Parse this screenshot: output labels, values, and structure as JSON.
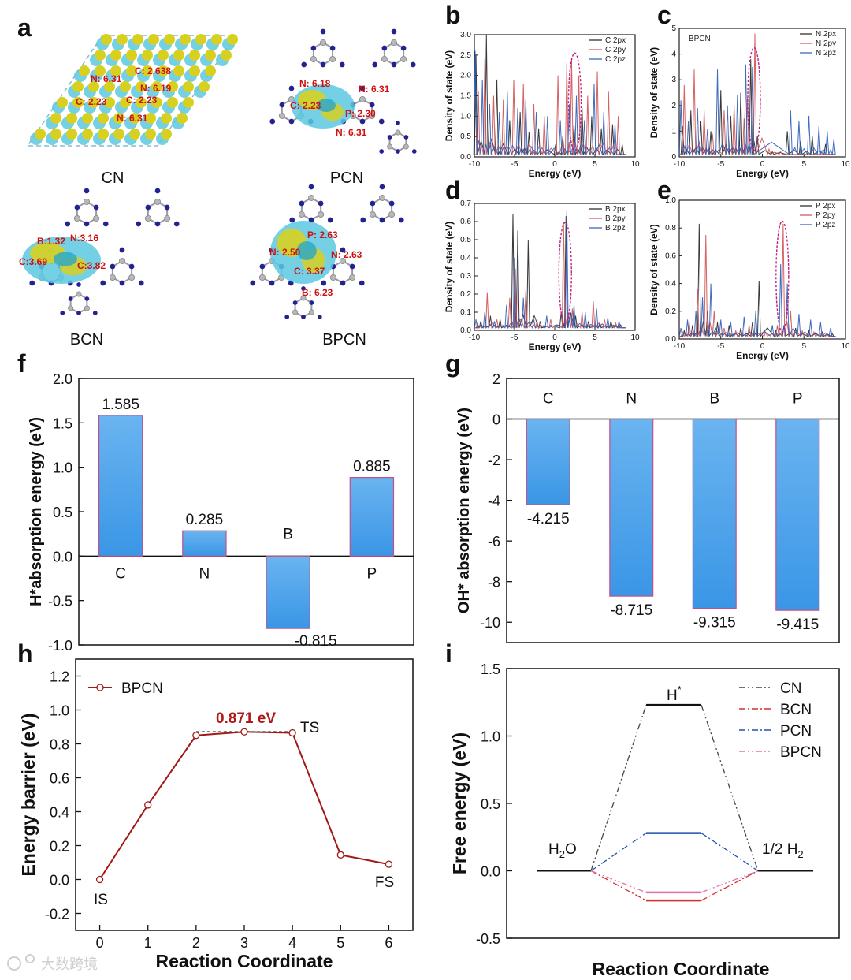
{
  "panel_letters": {
    "a": "a",
    "b": "b",
    "c": "c",
    "d": "d",
    "e": "e",
    "f": "f",
    "g": "g",
    "h": "h",
    "i": "i"
  },
  "panel_a": {
    "structures": [
      {
        "caption": "CN",
        "annotations": [
          "N: 6.31",
          "C: 2.638",
          "N: 6.19",
          "C: 2.23",
          "C: 2.23",
          "N: 6.31"
        ]
      },
      {
        "caption": "PCN",
        "annotations": [
          "N: 6.18",
          "N: 6.31",
          "C: 2.23",
          "P: 2.30",
          "N: 6.31"
        ]
      },
      {
        "caption": "BCN",
        "annotations": [
          "B:1.32",
          "N:3.16",
          "C:3.69",
          "C:3.82"
        ]
      },
      {
        "caption": "BPCN",
        "annotations": [
          "P: 2.63",
          "N: 2.50",
          "N: 2.63",
          "C: 3.37",
          "B: 6.23"
        ]
      }
    ],
    "colors": {
      "carbon": "#b8b8b8",
      "nitrogen": "#23238f",
      "bond": "#9a9aa8",
      "density_yellow": "#d8d020",
      "density_cyan": "#5cc8e0",
      "annotation": "#d01010"
    }
  },
  "watermark": "大数跨境",
  "chart_data": [
    {
      "id": "b",
      "type": "line",
      "title": "",
      "xlabel": "Energy (eV)",
      "ylabel": "Density of state (eV)",
      "xlim": [
        -10,
        10
      ],
      "ylim": [
        0,
        3.0
      ],
      "xticks": [
        "-10",
        "-5",
        "0",
        "5",
        "10"
      ],
      "yticks": [
        "0.0",
        "0.5",
        "1.0",
        "1.5",
        "2.0",
        "2.5",
        "3.0"
      ],
      "legend": [
        "C 2px",
        "C 2py",
        "C 2pz"
      ],
      "colors": [
        "#222222",
        "#d05050",
        "#2a5cb8"
      ],
      "highlight_x": 2.5,
      "peaks": [
        {
          "x": [
            -9.8,
            -8.5,
            -7.2,
            -5.6,
            -4.3,
            -3.2,
            -2.0,
            0.1,
            1.0,
            2.4,
            3.4,
            4.6,
            5.8,
            7.2,
            8.4
          ],
          "y": [
            2.5,
            3.0,
            1.9,
            0.9,
            1.1,
            0.6,
            0.7,
            0.3,
            0.5,
            0.8,
            1.2,
            1.0,
            0.7,
            0.8,
            0.3
          ]
        },
        {
          "x": [
            -9.5,
            -8.7,
            -7.6,
            -6.4,
            -5.1,
            -3.9,
            -2.6,
            -1.3,
            0.4,
            1.5,
            2.1,
            3.0,
            4.1,
            5.3,
            6.7,
            7.9
          ],
          "y": [
            1.6,
            2.4,
            1.5,
            1.4,
            1.9,
            1.8,
            1.3,
            1.0,
            2.0,
            2.3,
            2.4,
            2.0,
            1.5,
            2.1,
            1.6,
            1.0
          ]
        },
        {
          "x": [
            -9.9,
            -9.0,
            -8.1,
            -6.9,
            -5.9,
            -4.6,
            -3.6,
            -2.3,
            -0.9,
            0.7,
            1.8,
            2.7,
            3.7,
            4.9,
            6.1,
            7.5
          ],
          "y": [
            2.6,
            1.9,
            1.3,
            1.1,
            1.6,
            1.2,
            1.4,
            1.1,
            1.0,
            0.9,
            1.3,
            1.5,
            0.9,
            1.8,
            1.1,
            0.8
          ]
        }
      ]
    },
    {
      "id": "c",
      "type": "line",
      "title": "BPCN",
      "xlabel": "Energy (eV)",
      "ylabel": "Density of state (eV)",
      "xlim": [
        -10,
        10
      ],
      "ylim": [
        0,
        5
      ],
      "xticks": [
        "-10",
        "-5",
        "0",
        "5",
        "10"
      ],
      "yticks": [
        "0",
        "1",
        "2",
        "3",
        "4",
        "5"
      ],
      "legend": [
        "N 2px",
        "N 2py",
        "N 2pz"
      ],
      "colors": [
        "#222222",
        "#d05050",
        "#2a5cb8"
      ],
      "highlight_x": -1.0,
      "peaks": [
        {
          "x": [
            -9.6,
            -8.6,
            -7.4,
            -6.2,
            -5.0,
            -3.8,
            -2.6,
            -1.4,
            -0.6,
            1.2,
            3.0,
            4.6,
            6.0,
            7.6
          ],
          "y": [
            1.2,
            1.8,
            1.4,
            1.0,
            2.6,
            1.6,
            2.5,
            3.8,
            0.8,
            0.2,
            1.0,
            0.6,
            0.8,
            0.5
          ]
        },
        {
          "x": [
            -9.4,
            -8.2,
            -7.0,
            -6.0,
            -4.6,
            -3.4,
            -2.2,
            -1.8,
            -0.9,
            0.8,
            2.2
          ],
          "y": [
            2.8,
            3.4,
            1.8,
            0.9,
            1.8,
            2.0,
            1.5,
            2.3,
            4.8,
            0.3,
            0.2
          ]
        },
        {
          "x": [
            -9.8,
            -8.9,
            -7.8,
            -6.6,
            -5.4,
            -4.2,
            -3.0,
            -2.0,
            -1.2,
            3.4,
            4.4,
            5.6,
            6.8,
            7.8,
            8.6
          ],
          "y": [
            2.2,
            1.4,
            1.9,
            1.1,
            3.4,
            2.0,
            2.4,
            3.6,
            3.5,
            1.8,
            1.4,
            1.6,
            1.2,
            1.0,
            0.7
          ]
        }
      ]
    },
    {
      "id": "d",
      "type": "line",
      "title": "",
      "xlabel": "Energy (eV)",
      "ylabel": "Density of state (eV)",
      "xlim": [
        -10,
        10
      ],
      "ylim": [
        0,
        0.7
      ],
      "xticks": [
        "-10",
        "-5",
        "0",
        "5",
        "10"
      ],
      "yticks": [
        "0.0",
        "0.1",
        "0.2",
        "0.3",
        "0.4",
        "0.5",
        "0.6",
        "0.7"
      ],
      "legend": [
        "B 2px",
        "B 2py",
        "B 2pz"
      ],
      "colors": [
        "#222222",
        "#d05050",
        "#2a5cb8"
      ],
      "highlight_x": 1.3,
      "peaks": [
        {
          "x": [
            -9.2,
            -8.0,
            -6.8,
            -5.2,
            -4.6,
            -3.3,
            -1.8,
            0.8,
            1.4,
            2.6,
            4.2,
            5.6,
            7.0,
            8.2
          ],
          "y": [
            0.05,
            0.08,
            0.06,
            0.64,
            0.55,
            0.5,
            0.05,
            0.1,
            0.63,
            0.08,
            0.05,
            0.04,
            0.05,
            0.03
          ]
        },
        {
          "x": [
            -9.6,
            -8.4,
            -7.2,
            -5.6,
            -4.9,
            -3.6,
            -2.2,
            -0.5,
            1.1,
            2.2,
            3.4,
            4.8,
            6.2,
            7.6
          ],
          "y": [
            0.04,
            0.21,
            0.06,
            0.18,
            0.34,
            0.22,
            0.05,
            0.06,
            0.6,
            0.12,
            0.1,
            0.16,
            0.06,
            0.04
          ]
        },
        {
          "x": [
            -9.8,
            -8.7,
            -7.5,
            -6.0,
            -5.0,
            -3.9,
            -2.6,
            -1.0,
            1.5,
            2.4,
            3.8,
            5.2,
            6.6,
            8.0
          ],
          "y": [
            0.06,
            0.1,
            0.05,
            0.14,
            0.4,
            0.18,
            0.06,
            0.08,
            0.66,
            0.14,
            0.1,
            0.12,
            0.07,
            0.05
          ]
        }
      ]
    },
    {
      "id": "e",
      "type": "line",
      "title": "",
      "xlabel": "Energy (eV)",
      "ylabel": "Density of state (eV)",
      "xlim": [
        -10,
        10
      ],
      "ylim": [
        0,
        1.0
      ],
      "xticks": [
        "-10",
        "-5",
        "0",
        "5",
        "10"
      ],
      "yticks": [
        "0.0",
        "0.2",
        "0.4",
        "0.6",
        "0.8",
        "1.0"
      ],
      "legend": [
        "P 2px",
        "P 2py",
        "P 2pz"
      ],
      "colors": [
        "#222222",
        "#d05050",
        "#2a5cb8"
      ],
      "highlight_x": 2.4,
      "peaks": [
        {
          "x": [
            -9.4,
            -8.4,
            -7.6,
            -6.6,
            -5.4,
            -4.0,
            -2.6,
            -1.2,
            -0.4,
            1.6,
            2.6,
            4.0,
            5.6,
            7.2,
            8.4
          ],
          "y": [
            0.06,
            0.1,
            0.83,
            0.2,
            0.12,
            0.1,
            0.08,
            0.12,
            0.42,
            0.06,
            0.1,
            0.08,
            0.06,
            0.05,
            0.04
          ]
        },
        {
          "x": [
            -9.6,
            -8.8,
            -7.8,
            -6.8,
            -5.8,
            -4.6,
            -3.2,
            -1.6,
            0.4,
            1.8,
            2.5,
            3.4,
            4.8,
            6.2,
            7.8
          ],
          "y": [
            0.05,
            0.12,
            0.36,
            0.75,
            0.2,
            0.08,
            0.06,
            0.1,
            0.05,
            0.1,
            0.83,
            0.2,
            0.06,
            0.05,
            0.04
          ]
        },
        {
          "x": [
            -9.8,
            -9.0,
            -8.0,
            -7.2,
            -6.2,
            -5.0,
            -3.8,
            -2.2,
            -0.8,
            1.2,
            2.2,
            3.0,
            4.4,
            5.8,
            7.0,
            8.2
          ],
          "y": [
            0.08,
            0.14,
            0.2,
            0.3,
            0.4,
            0.14,
            0.12,
            0.16,
            0.2,
            0.1,
            0.54,
            0.4,
            0.18,
            0.14,
            0.12,
            0.08
          ]
        }
      ]
    },
    {
      "id": "f",
      "type": "bar",
      "title": "",
      "xlabel": "",
      "ylabel": "H*absorption energy (eV)",
      "categories": [
        "C",
        "N",
        "B",
        "P"
      ],
      "values": [
        1.585,
        0.285,
        -0.815,
        0.885
      ],
      "value_labels": [
        "1.585",
        "0.285",
        "-0.815",
        "0.885"
      ],
      "ylim": [
        -1.0,
        2.0
      ],
      "yticks": [
        "-1.0",
        "-0.5",
        "0.0",
        "0.5",
        "1.0",
        "1.5",
        "2.0"
      ],
      "bar_color": "#3a96e6",
      "bar_edge": "#c0508a"
    },
    {
      "id": "g",
      "type": "bar",
      "title": "",
      "xlabel": "",
      "ylabel": "OH* absorption energy (eV)",
      "categories": [
        "C",
        "N",
        "B",
        "P"
      ],
      "values": [
        -4.215,
        -8.715,
        -9.315,
        -9.415
      ],
      "value_labels": [
        "-4.215",
        "-8.715",
        "-9.315",
        "-9.415"
      ],
      "ylim": [
        -11,
        2
      ],
      "yticks": [
        "-10",
        "-8",
        "-6",
        "-4",
        "-2",
        "0",
        "2"
      ],
      "bar_color": "#3a96e6",
      "bar_edge": "#c0508a"
    },
    {
      "id": "h",
      "type": "line",
      "title": "",
      "xlabel": "Reaction Coordinate",
      "ylabel": "Energy barrier (eV)",
      "x": [
        0,
        1,
        2,
        3,
        4,
        5,
        6
      ],
      "y": [
        0.0,
        0.44,
        0.85,
        0.871,
        0.865,
        0.145,
        0.09
      ],
      "xlim": [
        -0.5,
        6.5
      ],
      "ylim": [
        -0.3,
        1.3
      ],
      "xticks": [
        "0",
        "1",
        "2",
        "3",
        "4",
        "5",
        "6"
      ],
      "yticks": [
        "-0.2",
        "0.0",
        "0.2",
        "0.4",
        "0.6",
        "0.8",
        "1.0",
        "1.2"
      ],
      "legend": [
        "BPCN"
      ],
      "color": "#a01818",
      "labels": {
        "IS": "IS",
        "TS": "TS",
        "FS": "FS"
      },
      "barrier_label": "0.871 eV"
    },
    {
      "id": "i",
      "type": "line",
      "title": "",
      "xlabel": "Reaction Coordinate",
      "ylabel": "Free energy (eV)",
      "ylim": [
        -0.5,
        1.5
      ],
      "yticks": [
        "-0.5",
        "0.0",
        "0.5",
        "1.0",
        "1.5"
      ],
      "states": [
        "H2O",
        "H*",
        "1/2 H2"
      ],
      "state_labels": {
        "h2o": "H",
        "h2o_sub": "2",
        "h2o_tail": "O",
        "hstar": "H",
        "hstar_sup": "*",
        "h2": "1/2 H",
        "h2_sub": "2"
      },
      "series": [
        {
          "name": "CN",
          "values": [
            0,
            1.23,
            0
          ],
          "color": "#444444"
        },
        {
          "name": "BCN",
          "values": [
            0,
            -0.22,
            0
          ],
          "color": "#d03030"
        },
        {
          "name": "PCN",
          "values": [
            0,
            0.28,
            0
          ],
          "color": "#2050b0"
        },
        {
          "name": "BPCN",
          "values": [
            0,
            -0.16,
            0
          ],
          "color": "#e070b0"
        }
      ]
    }
  ]
}
